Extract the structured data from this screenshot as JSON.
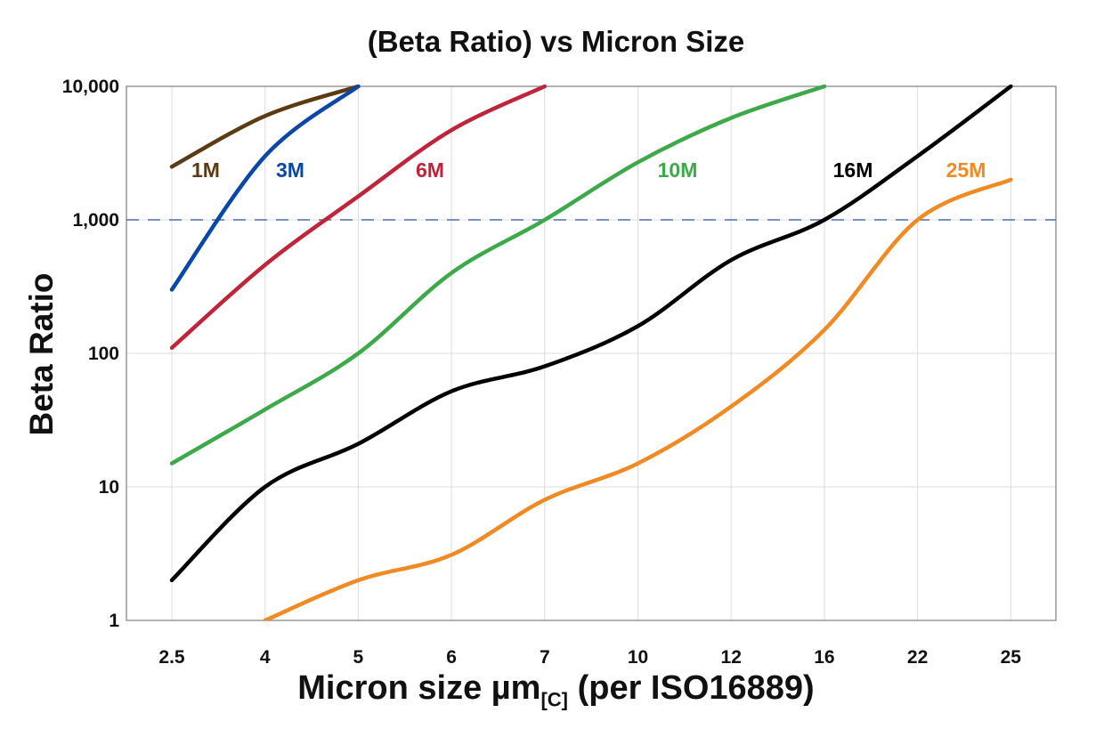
{
  "chart_data": {
    "type": "line",
    "title": "(Beta Ratio) vs Micron Size",
    "xlabel": "Micron size µm",
    "xlabel_subscript": "[C]",
    "xlabel_suffix": " (per ISO16889)",
    "ylabel": "Beta Ratio",
    "y_scale": "log",
    "ylim": [
      1,
      10000
    ],
    "y_ticks": [
      1,
      10,
      100,
      1000,
      10000
    ],
    "y_tick_labels": [
      "1",
      "10",
      "100",
      "1,000",
      "10,000"
    ],
    "categories": [
      "2.5",
      "4",
      "5",
      "6",
      "7",
      "10",
      "12",
      "16",
      "22",
      "25"
    ],
    "grid": true,
    "reference_line": {
      "y": 1000,
      "style": "dashed",
      "color": "#4a6fa5"
    },
    "series": [
      {
        "name": "1M",
        "color": "#5c3a12",
        "values": [
          2500,
          6000,
          10000,
          null,
          null,
          null,
          null,
          null,
          null,
          null
        ]
      },
      {
        "name": "3M",
        "color": "#0a47a8",
        "values": [
          300,
          3000,
          10000,
          null,
          null,
          null,
          null,
          null,
          null,
          null
        ]
      },
      {
        "name": "6M",
        "color": "#c0243a",
        "values": [
          110,
          460,
          1500,
          4700,
          10000,
          null,
          null,
          null,
          null,
          null
        ]
      },
      {
        "name": "10M",
        "color": "#3daa4a",
        "values": [
          15,
          38,
          100,
          400,
          1000,
          2700,
          5800,
          10000,
          null,
          null
        ]
      },
      {
        "name": "16M",
        "color": "#000000",
        "values": [
          2,
          10,
          21,
          52,
          80,
          160,
          500,
          1000,
          3000,
          10000
        ]
      },
      {
        "name": "25M",
        "color": "#f28a24",
        "values": [
          null,
          1,
          2,
          3.1,
          8,
          15,
          40,
          150,
          1000,
          2000
        ]
      }
    ]
  }
}
